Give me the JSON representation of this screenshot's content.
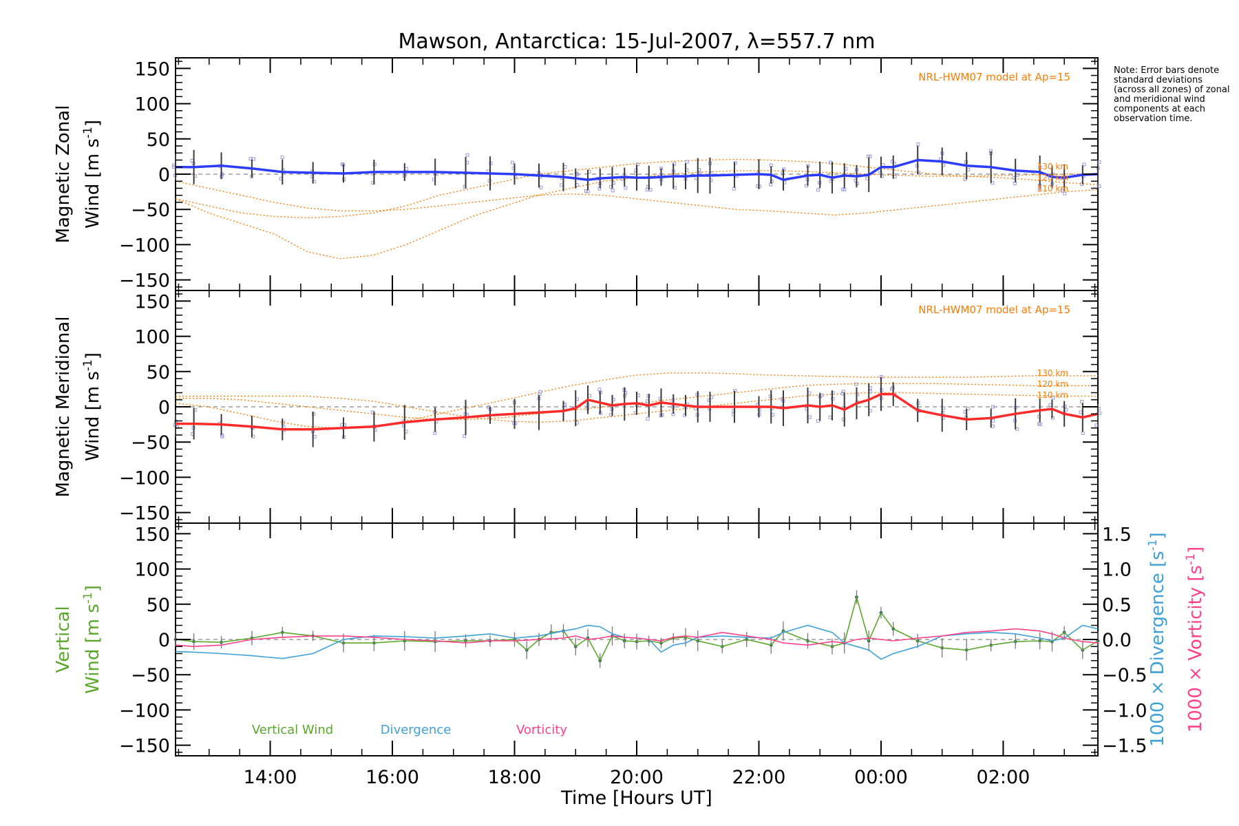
{
  "chart_data": {
    "type": "line",
    "title": "Mawson, Antarctica: 15-Jul-2007, λ=557.7 nm",
    "xlabel": "Time [Hours UT]",
    "x_range_hours": [
      12.45,
      27.55
    ],
    "x_ticks": [
      {
        "h": 14,
        "label": "14:00"
      },
      {
        "h": 16,
        "label": "16:00"
      },
      {
        "h": 18,
        "label": "18:00"
      },
      {
        "h": 20,
        "label": "20:00"
      },
      {
        "h": 22,
        "label": "22:00"
      },
      {
        "h": 24,
        "label": "00:00"
      },
      {
        "h": 26,
        "label": "02:00"
      }
    ],
    "y_ticks": [
      150,
      100,
      50,
      0,
      -50,
      -100,
      -150
    ],
    "ylim": [
      -165,
      165
    ],
    "note": "Note: Error bars denote standard deviations (across all zones) of zonal and meridional wind components at each observation time.",
    "panels": [
      {
        "id": "zonal",
        "ylabel_line1": "Magnetic Zonal",
        "ylabel_line2": "Wind [m s",
        "ylabel_sup": "-1",
        "ylabel_close": "]",
        "model_label": "NRL-HWM07 model at Ap=15",
        "model_alt_labels": [
          "130 km",
          "120 km",
          "110 km"
        ],
        "series_color": "#2b3cff",
        "x": [
          12.45,
          12.75,
          13.2,
          13.7,
          14.2,
          14.7,
          15.2,
          15.7,
          16.2,
          16.7,
          17.2,
          17.6,
          18.0,
          18.4,
          18.8,
          19.0,
          19.2,
          19.4,
          19.6,
          19.8,
          20.0,
          20.2,
          20.4,
          20.6,
          20.8,
          21.0,
          21.2,
          21.6,
          22.0,
          22.2,
          22.4,
          22.8,
          23.0,
          23.2,
          23.4,
          23.6,
          23.8,
          24.0,
          24.2,
          24.6,
          25.0,
          25.4,
          25.8,
          26.2,
          26.6,
          26.8,
          27.0,
          27.3,
          27.55
        ],
        "values": [
          10,
          10,
          12,
          8,
          3,
          2,
          1,
          3,
          3,
          3,
          2,
          1,
          0,
          -2,
          -4,
          -6,
          -8,
          -6,
          -5,
          -4,
          -5,
          -5,
          -4,
          -3,
          -3,
          -2,
          -2,
          -1,
          0,
          -1,
          -8,
          -2,
          -1,
          -5,
          -2,
          -3,
          -1,
          10,
          10,
          20,
          18,
          12,
          10,
          5,
          3,
          -4,
          -5,
          -1,
          0
        ],
        "model_curves": [
          {
            "name": "130 km",
            "values": [
              -35,
              -45,
              -55,
              -60,
              -62,
              -60,
              -55,
              -45,
              -30,
              -20,
              -10,
              0,
              5,
              10,
              15,
              18,
              20,
              21,
              20,
              18,
              15,
              10,
              5,
              0,
              -3,
              -5,
              -8,
              -12,
              -15
            ]
          },
          {
            "name": "120 km",
            "values": [
              -35,
              -55,
              -70,
              -85,
              -110,
              -120,
              -115,
              -100,
              -80,
              -60,
              -45,
              -30,
              -20,
              -10,
              -5,
              0,
              3,
              5,
              5,
              4,
              2,
              0,
              -2,
              -3,
              -3,
              -2,
              -1,
              0,
              0
            ]
          },
          {
            "name": "110 km",
            "values": [
              -10,
              -20,
              -30,
              -40,
              -48,
              -52,
              -52,
              -50,
              -45,
              -40,
              -35,
              -30,
              -28,
              -30,
              -35,
              -40,
              -45,
              -50,
              -52,
              -55,
              -58,
              -55,
              -50,
              -45,
              -40,
              -35,
              -30,
              -25,
              -22
            ]
          }
        ]
      },
      {
        "id": "meridional",
        "ylabel_line1": "Magnetic Meridional",
        "ylabel_line2": "Wind [m s",
        "ylabel_sup": "-1",
        "ylabel_close": "]",
        "model_label": "NRL-HWM07 model at Ap=15",
        "model_alt_labels": [
          "130 km",
          "120 km",
          "110 km"
        ],
        "series_color": "#ff2a2a",
        "x": [
          12.45,
          12.75,
          13.2,
          13.7,
          14.2,
          14.7,
          15.2,
          15.7,
          16.2,
          16.7,
          17.2,
          17.6,
          18.0,
          18.4,
          18.8,
          19.0,
          19.2,
          19.4,
          19.6,
          19.8,
          20.0,
          20.2,
          20.4,
          20.6,
          20.8,
          21.0,
          21.2,
          21.6,
          22.0,
          22.2,
          22.4,
          22.8,
          23.0,
          23.2,
          23.4,
          23.6,
          23.8,
          24.0,
          24.2,
          24.6,
          25.0,
          25.4,
          25.8,
          26.2,
          26.6,
          26.8,
          27.0,
          27.3,
          27.55
        ],
        "values": [
          -24,
          -24,
          -25,
          -28,
          -32,
          -32,
          -30,
          -28,
          -22,
          -18,
          -15,
          -12,
          -10,
          -8,
          -6,
          -2,
          10,
          6,
          2,
          4,
          5,
          2,
          6,
          4,
          2,
          0,
          0,
          0,
          0,
          0,
          -2,
          2,
          0,
          2,
          -4,
          5,
          10,
          18,
          18,
          -5,
          -12,
          -18,
          -16,
          -10,
          -5,
          -3,
          -10,
          -15,
          -10
        ],
        "model_curves": [
          {
            "name": "130 km",
            "values": [
              5,
              0,
              -10,
              -20,
              -28,
              -30,
              -28,
              -20,
              -10,
              0,
              10,
              20,
              30,
              38,
              45,
              48,
              48,
              47,
              45,
              44,
              43,
              42,
              42,
              42,
              42,
              43,
              44,
              44,
              44
            ]
          },
          {
            "name": "120 km",
            "values": [
              12,
              12,
              10,
              5,
              0,
              -5,
              -10,
              -15,
              -18,
              -18,
              -15,
              -10,
              -5,
              0,
              5,
              10,
              15,
              20,
              25,
              30,
              32,
              33,
              33,
              33,
              32,
              31,
              30,
              30,
              30
            ]
          },
          {
            "name": "110 km",
            "values": [
              15,
              15,
              15,
              15,
              15,
              12,
              8,
              0,
              -8,
              -15,
              -20,
              -22,
              -20,
              -15,
              -10,
              -5,
              0,
              5,
              10,
              15,
              18,
              20,
              20,
              19,
              18,
              17,
              16,
              15,
              15
            ]
          }
        ]
      },
      {
        "id": "vertical",
        "ylabel_line1": "Vertical",
        "ylabel_line2": "Wind [m s",
        "ylabel_sup": "-1",
        "ylabel_close": "]",
        "right_ticks": [
          {
            "value": 1.5,
            "label": "1.5"
          },
          {
            "value": 1.0,
            "label": "1.0"
          },
          {
            "value": 0.5,
            "label": "0.5"
          },
          {
            "value": 0.0,
            "label": "0.0"
          },
          {
            "value": -0.5,
            "label": "−0.5"
          },
          {
            "value": -1.0,
            "label": "−1.0"
          },
          {
            "value": -1.5,
            "label": "−1.5"
          }
        ],
        "right_label_divergence": "1000 × Divergence [s",
        "right_label_vorticity": "1000 × Vorticity [s",
        "right_label_sup": "-1",
        "right_label_close": "]",
        "legend": [
          {
            "name": "Vertical Wind",
            "color": "#5aa72c"
          },
          {
            "name": "Divergence",
            "color": "#3ea0d8"
          },
          {
            "name": "Vorticity",
            "color": "#ff3f8a"
          }
        ],
        "series": [
          {
            "name": "Vertical Wind",
            "color": "#5aa72c",
            "x": [
              12.45,
              12.75,
              13.2,
              13.7,
              14.2,
              14.7,
              15.2,
              15.7,
              16.2,
              16.7,
              17.2,
              17.6,
              18.0,
              18.2,
              18.4,
              18.6,
              18.8,
              19.0,
              19.2,
              19.4,
              19.6,
              19.8,
              20.0,
              20.2,
              20.4,
              20.6,
              20.8,
              21.0,
              21.4,
              21.8,
              22.2,
              22.4,
              22.8,
              23.2,
              23.4,
              23.6,
              23.8,
              24.0,
              24.2,
              24.6,
              25.0,
              25.4,
              25.8,
              26.2,
              26.6,
              26.8,
              27.0,
              27.3,
              27.55
            ],
            "values": [
              0,
              -3,
              -4,
              2,
              10,
              5,
              -5,
              -5,
              -2,
              -3,
              -2,
              -2,
              0,
              -15,
              0,
              10,
              12,
              -10,
              2,
              -30,
              5,
              -2,
              -3,
              -2,
              -5,
              2,
              3,
              -2,
              -10,
              0,
              -8,
              12,
              -2,
              -10,
              -5,
              60,
              -2,
              38,
              15,
              -2,
              -12,
              -15,
              -8,
              -3,
              -2,
              -3,
              10,
              -15,
              -2
            ]
          },
          {
            "name": "Divergence",
            "value_scale": "1000 × Divergence [s^-1] plotted on right axis (×100 m s^-1 per unit)",
            "color": "#3ea0d8",
            "x": [
              12.45,
              12.75,
              13.2,
              13.7,
              14.2,
              14.7,
              15.2,
              15.7,
              16.2,
              16.7,
              17.2,
              17.6,
              18.0,
              18.4,
              18.8,
              19.0,
              19.2,
              19.4,
              19.6,
              19.8,
              20.0,
              20.2,
              20.4,
              20.6,
              20.8,
              21.0,
              21.4,
              21.8,
              22.2,
              22.4,
              22.8,
              23.2,
              23.4,
              23.6,
              23.8,
              24.0,
              24.2,
              24.6,
              25.0,
              25.4,
              25.8,
              26.2,
              26.6,
              26.8,
              27.0,
              27.3,
              27.55
            ],
            "values": [
              -0.17,
              -0.18,
              -0.2,
              -0.23,
              -0.27,
              -0.2,
              0.0,
              0.05,
              0.04,
              0.02,
              0.05,
              0.08,
              0.02,
              0.05,
              0.12,
              0.15,
              0.2,
              0.18,
              0.08,
              0.03,
              0.02,
              0.0,
              -0.18,
              -0.08,
              -0.05,
              0.03,
              0.05,
              0.03,
              0.02,
              0.1,
              0.2,
              0.1,
              -0.05,
              -0.1,
              -0.15,
              -0.28,
              -0.2,
              -0.1,
              0.05,
              0.08,
              0.1,
              0.08,
              0.02,
              -0.02,
              0.02,
              0.2,
              0.15
            ]
          },
          {
            "name": "Vorticity",
            "value_scale": "1000 × Vorticity [s^-1] plotted on right axis",
            "color": "#ff3f8a",
            "x": [
              12.45,
              12.75,
              13.2,
              13.7,
              14.2,
              14.7,
              15.2,
              15.7,
              16.2,
              16.7,
              17.2,
              17.6,
              18.0,
              18.4,
              18.8,
              19.0,
              19.2,
              19.4,
              19.6,
              19.8,
              20.0,
              20.2,
              20.4,
              20.6,
              20.8,
              21.0,
              21.4,
              21.8,
              22.2,
              22.4,
              22.8,
              23.2,
              23.4,
              23.6,
              23.8,
              24.0,
              24.2,
              24.6,
              25.0,
              25.4,
              25.8,
              26.2,
              26.6,
              26.8,
              27.0,
              27.3,
              27.55
            ],
            "values": [
              -0.08,
              -0.1,
              -0.08,
              0.0,
              0.03,
              0.05,
              0.05,
              0.03,
              0.0,
              -0.02,
              -0.05,
              -0.02,
              -0.02,
              0.0,
              0.02,
              0.05,
              0.0,
              0.02,
              0.05,
              0.03,
              0.02,
              0.0,
              -0.02,
              0.03,
              0.05,
              0.03,
              0.1,
              0.05,
              0.0,
              -0.05,
              -0.08,
              -0.03,
              -0.05,
              0.0,
              0.02,
              0.0,
              -0.02,
              0.02,
              0.05,
              0.1,
              0.12,
              0.15,
              0.12,
              0.08,
              0.02,
              -0.03,
              -0.05
            ]
          }
        ]
      }
    ]
  },
  "colors": {
    "model": "#ff7a00",
    "error_bar": "#3a3a3a",
    "scatter": "#9a9ad8",
    "zero_line": "#888888"
  }
}
